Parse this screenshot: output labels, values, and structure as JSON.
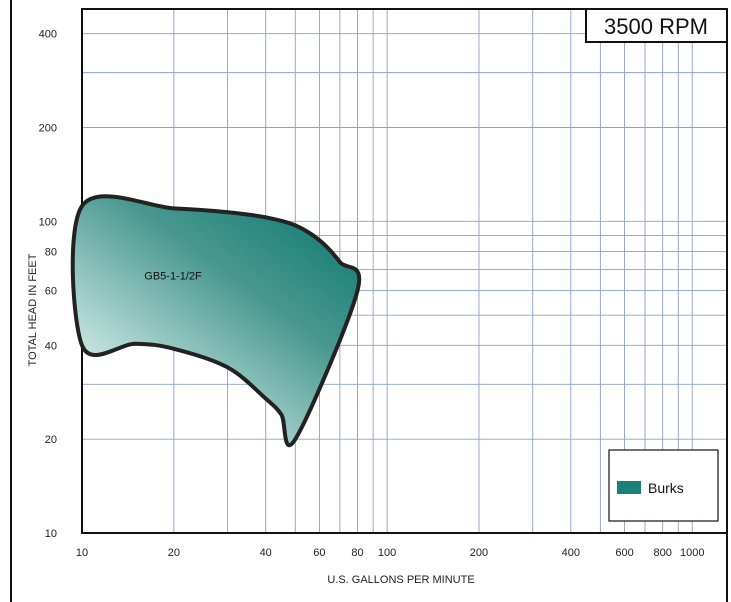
{
  "chart_data": {
    "type": "area",
    "title": "3500 RPM",
    "xlabel": "U.S. GALLONS PER MINUTE",
    "ylabel": "TOTAL HEAD IN FEET",
    "x_scale": "log",
    "y_scale": "log",
    "xlim": [
      10,
      1300
    ],
    "ylim": [
      10,
      480
    ],
    "x_ticks": [
      10,
      20,
      40,
      60,
      80,
      100,
      200,
      400,
      600,
      800,
      1000
    ],
    "x_tick_labels": [
      "10",
      "20",
      "40",
      "60",
      "80",
      "100",
      "200",
      "400",
      "600",
      "800",
      "1000"
    ],
    "y_ticks": [
      10,
      20,
      40,
      60,
      80,
      100,
      200,
      400
    ],
    "y_tick_labels": [
      "10",
      "20",
      "40",
      "60",
      "80",
      "100",
      "200",
      "400"
    ],
    "x_grid": [
      10,
      20,
      30,
      40,
      50,
      60,
      70,
      80,
      90,
      100,
      200,
      300,
      400,
      500,
      600,
      700,
      800,
      900,
      1000
    ],
    "y_grid": [
      10,
      20,
      30,
      40,
      50,
      60,
      70,
      80,
      90,
      100,
      200,
      300,
      400
    ],
    "grid": true,
    "legend_position": "bottom-right",
    "series": [
      {
        "name": "Burks",
        "color": "#1a8078",
        "region_label": "GB5-1-1/2F",
        "region_label_at": [
          16,
          65
        ],
        "upper_curve": [
          [
            10,
            112
          ],
          [
            20,
            110
          ],
          [
            30,
            107
          ],
          [
            40,
            103
          ],
          [
            50,
            97
          ],
          [
            60,
            87
          ],
          [
            70,
            74
          ],
          [
            80,
            60
          ]
        ],
        "lower_curve": [
          [
            10,
            40
          ],
          [
            15,
            40.5
          ],
          [
            20,
            39
          ],
          [
            30,
            34
          ],
          [
            40,
            27
          ],
          [
            45,
            24
          ],
          [
            50,
            20
          ]
        ]
      }
    ]
  }
}
